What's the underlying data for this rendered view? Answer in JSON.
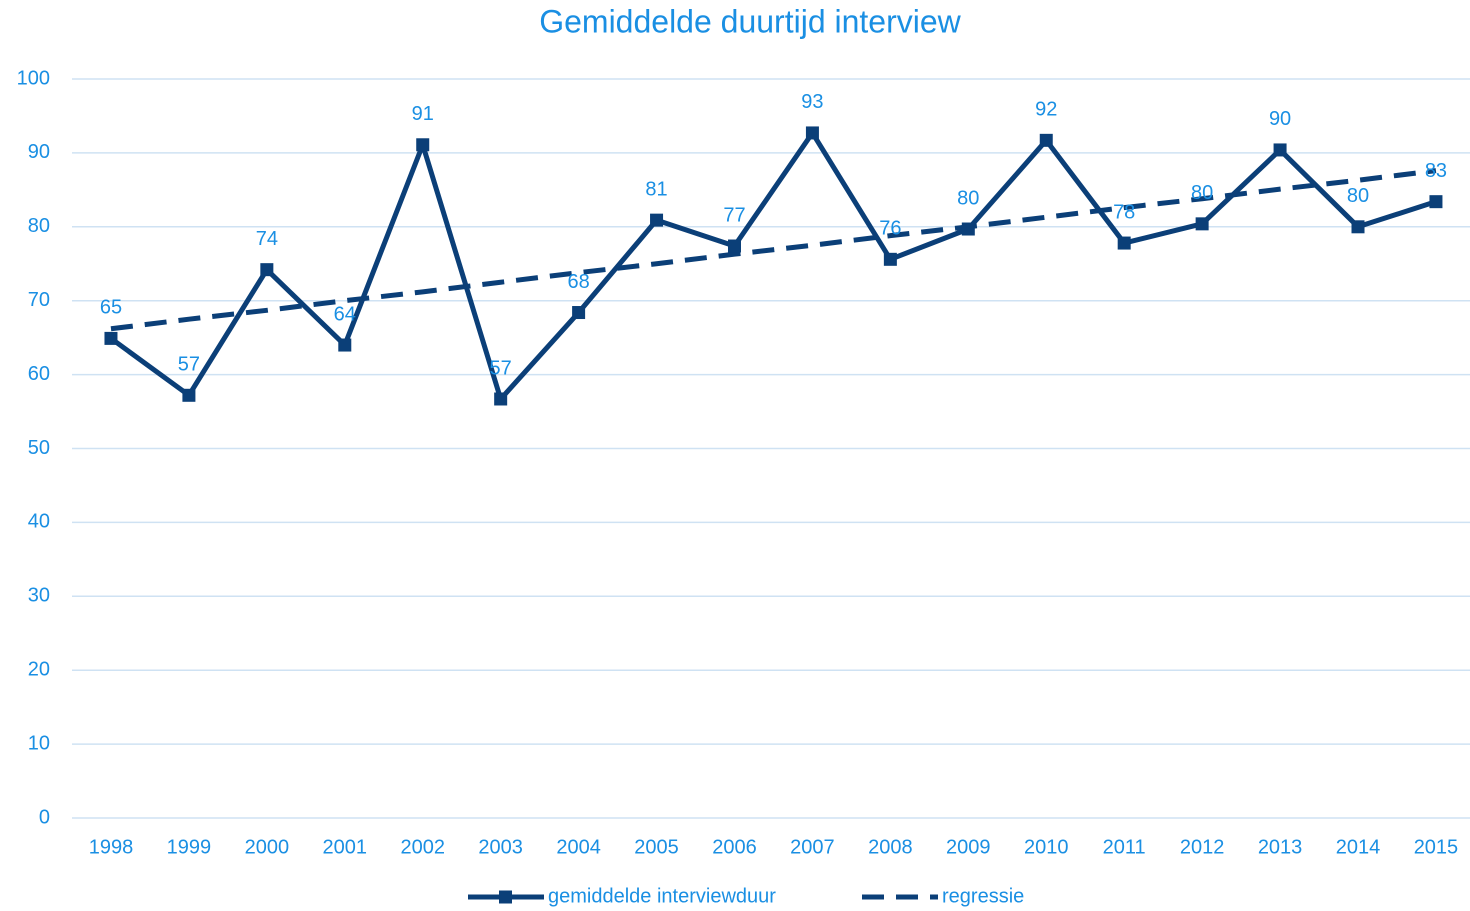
{
  "chart_data": {
    "type": "line",
    "title": "Gemiddelde duurtijd interview",
    "categories": [
      "1998",
      "1999",
      "2000",
      "2001",
      "2002",
      "2003",
      "2004",
      "2005",
      "2006",
      "2007",
      "2008",
      "2009",
      "2010",
      "2011",
      "2012",
      "2013",
      "2014",
      "2015"
    ],
    "series": [
      {
        "name": "gemiddelde interviewduur",
        "color": "#0b3f78",
        "marker": "square",
        "values": [
          64.9,
          57.2,
          74.2,
          64.0,
          91.1,
          56.7,
          68.4,
          80.9,
          77.4,
          92.7,
          75.6,
          79.7,
          91.7,
          77.8,
          80.4,
          90.4,
          80.0,
          83.4
        ],
        "value_labels": [
          "65",
          "57",
          "74",
          "64",
          "91",
          "57",
          "68",
          "81",
          "77",
          "93",
          "76",
          "80",
          "92",
          "78",
          "80",
          "90",
          "80",
          "83"
        ]
      },
      {
        "name": "regressie",
        "color": "#0b3f78",
        "dashed": true,
        "values": [
          66.2,
          67.5,
          68.7,
          70.0,
          71.2,
          72.5,
          73.8,
          75.0,
          76.3,
          77.5,
          78.8,
          80.0,
          81.3,
          82.6,
          83.8,
          85.1,
          86.3,
          87.6
        ]
      }
    ],
    "ylim": [
      0,
      100
    ],
    "yticks": [
      0,
      10,
      20,
      30,
      40,
      50,
      60,
      70,
      80,
      90,
      100
    ],
    "grid": true,
    "legend": "bottom"
  }
}
